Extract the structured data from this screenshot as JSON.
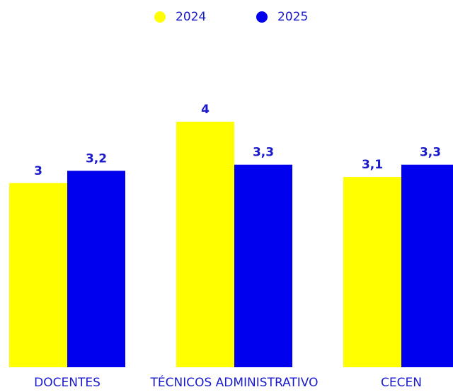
{
  "chart_data": {
    "type": "bar",
    "categories": [
      "DOCENTES",
      "TÉCNICOS ADMINISTRATIVO",
      "CECEN"
    ],
    "series": [
      {
        "name": "2024",
        "color": "#ffff00",
        "values": [
          3,
          4,
          3.1
        ],
        "value_labels": [
          "3",
          "4",
          "3,1"
        ]
      },
      {
        "name": "2025",
        "color": "#0000ee",
        "values": [
          3.2,
          3.3,
          3.3
        ],
        "value_labels": [
          "3,2",
          "3,3",
          "3,3"
        ]
      }
    ]
  }
}
